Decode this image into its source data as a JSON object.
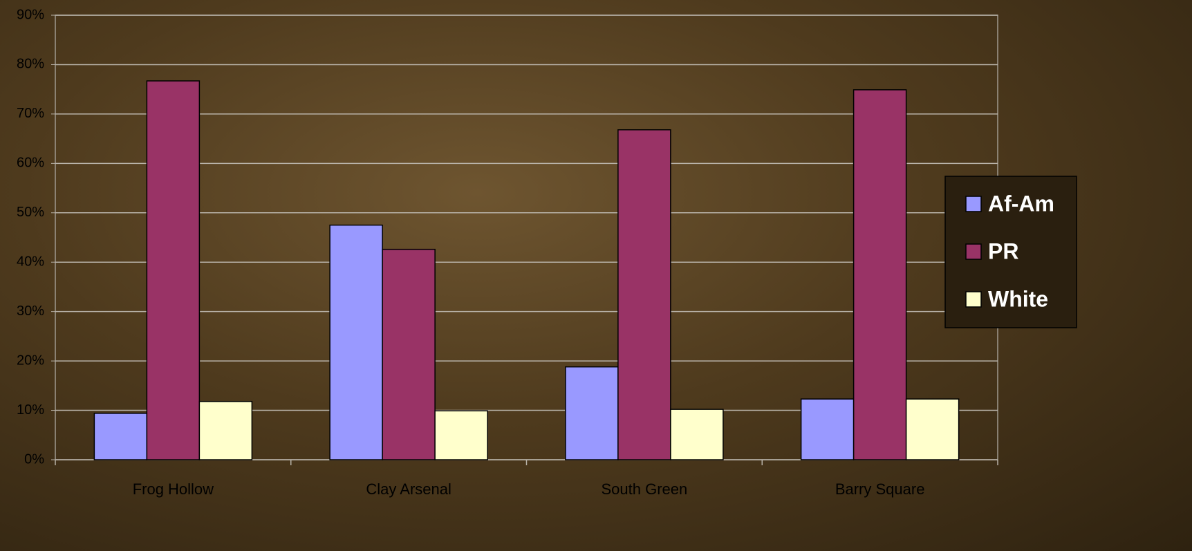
{
  "chart_data": {
    "type": "bar",
    "categories": [
      "Frog Hollow",
      "Clay Arsenal",
      "South Green",
      "Barry Square"
    ],
    "series": [
      {
        "name": "Af-Am",
        "color": "#9999ff",
        "values": [
          9.4,
          47.5,
          18.8,
          12.3
        ]
      },
      {
        "name": "PR",
        "color": "#993366",
        "values": [
          76.7,
          42.6,
          66.8,
          74.9
        ]
      },
      {
        "name": "White",
        "color": "#ffffcc",
        "values": [
          11.8,
          9.9,
          10.2,
          12.3
        ]
      }
    ],
    "ylim": [
      0,
      90
    ],
    "yticks": [
      {
        "value": 0,
        "label": "0%"
      },
      {
        "value": 10,
        "label": "10%"
      },
      {
        "value": 20,
        "label": "20%"
      },
      {
        "value": 30,
        "label": "30%"
      },
      {
        "value": 40,
        "label": "40%"
      },
      {
        "value": 50,
        "label": "50%"
      },
      {
        "value": 60,
        "label": "60%"
      },
      {
        "value": 70,
        "label": "70%"
      },
      {
        "value": 80,
        "label": "80%"
      },
      {
        "value": 90,
        "label": "90%"
      }
    ],
    "grid": true,
    "legend": "right"
  }
}
